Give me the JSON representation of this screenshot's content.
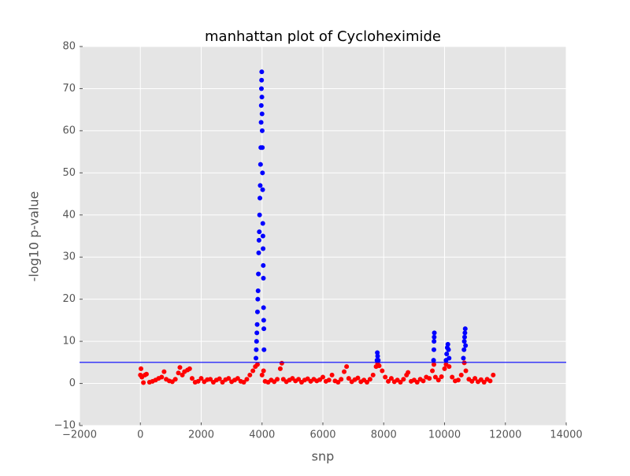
{
  "chart_data": {
    "type": "scatter",
    "title": "manhattan plot of Cycloheximide",
    "xlabel": "snp",
    "ylabel": "-log10 p-value",
    "xlim": [
      -2000,
      14000
    ],
    "ylim": [
      -10,
      80
    ],
    "xticks": [
      {
        "value": -2000,
        "label": "−2000"
      },
      0,
      2000,
      4000,
      6000,
      8000,
      10000,
      12000,
      14000
    ],
    "yticks": [
      {
        "value": -10,
        "label": "−10"
      },
      0,
      10,
      20,
      30,
      40,
      50,
      60,
      70,
      80
    ],
    "grid": true,
    "threshold": 5,
    "threshold_color": "#0000ff",
    "series": [
      {
        "color": "#ff0000",
        "x": [
          0,
          20,
          50,
          100,
          150,
          200,
          300,
          400,
          500,
          600,
          700,
          780,
          850,
          950,
          1050,
          1150,
          1250,
          1300,
          1380,
          1450,
          1550,
          1620,
          1700,
          1800,
          1900,
          2000,
          2100,
          2200,
          2300,
          2400,
          2500,
          2600,
          2700,
          2800,
          2900,
          3000,
          3100,
          3200,
          3300,
          3400,
          3500,
          3600,
          3700,
          3780,
          3850,
          4000,
          4050,
          4100,
          4200,
          4300,
          4400,
          4500,
          4600,
          4650,
          4700,
          4800,
          4900,
          5000,
          5100,
          5200,
          5300,
          5400,
          5500,
          5600,
          5700,
          5800,
          5900,
          6000,
          6100,
          6200,
          6300,
          6400,
          6500,
          6600,
          6700,
          6780,
          6850,
          6950,
          7050,
          7150,
          7250,
          7350,
          7450,
          7550,
          7650,
          7750,
          7800,
          7850,
          7950,
          8050,
          8150,
          8250,
          8350,
          8450,
          8550,
          8650,
          8750,
          8800,
          8900,
          9000,
          9100,
          9200,
          9300,
          9400,
          9500,
          9600,
          9650,
          9700,
          9800,
          9900,
          10000,
          10050,
          10150,
          10250,
          10350,
          10450,
          10550,
          10650,
          10700,
          10800,
          10900,
          11000,
          11100,
          11200,
          11300,
          11400,
          11500,
          11600
        ],
        "values": [
          2,
          3.5,
          1.5,
          0.2,
          2,
          2.2,
          0.3,
          0.5,
          0.8,
          1.2,
          1.5,
          2.8,
          1.0,
          0.6,
          0.4,
          1.0,
          2.5,
          3.8,
          2.0,
          2.8,
          3.2,
          3.5,
          1.2,
          0.3,
          0.5,
          1.2,
          0.4,
          0.9,
          1.0,
          0.3,
          0.8,
          1.1,
          0.3,
          0.9,
          1.2,
          0.4,
          0.8,
          1.2,
          0.5,
          0.3,
          1.0,
          2.0,
          3.0,
          4.0,
          4.5,
          2.0,
          3.0,
          0.5,
          0.3,
          0.8,
          0.4,
          1.0,
          3.5,
          4.8,
          1.0,
          0.4,
          0.8,
          1.2,
          0.6,
          1.0,
          0.3,
          0.8,
          1.1,
          0.5,
          1.0,
          0.6,
          0.9,
          1.5,
          0.5,
          0.8,
          2.0,
          0.6,
          0.3,
          1.0,
          2.8,
          4.0,
          1.2,
          0.4,
          0.9,
          1.3,
          0.4,
          0.8,
          0.3,
          1.0,
          2.0,
          4.0,
          4.8,
          4.2,
          3.0,
          1.5,
          0.5,
          1.2,
          0.4,
          0.8,
          0.3,
          1.0,
          2.0,
          2.6,
          0.5,
          0.8,
          0.3,
          1.0,
          0.6,
          1.5,
          1.2,
          3.0,
          4.5,
          1.5,
          0.8,
          1.6,
          3.5,
          4.5,
          4.0,
          1.5,
          0.6,
          0.8,
          2.0,
          4.9,
          3.0,
          1.0,
          0.5,
          1.2,
          0.4,
          0.9,
          0.3,
          1.0,
          0.6,
          2.0
        ]
      },
      {
        "color": "#0000ff",
        "x": [
          3800,
          3810,
          3820,
          3830,
          3840,
          3850,
          3860,
          3870,
          3880,
          3890,
          3900,
          3910,
          3920,
          3930,
          3940,
          3950,
          3960,
          3970,
          3975,
          3980,
          3985,
          3990,
          3995,
          4000,
          4005,
          4010,
          4015,
          4020,
          4025,
          4030,
          4035,
          4040,
          4045,
          4050,
          4055,
          4060,
          4065,
          7780,
          7790,
          7800,
          7820,
          9640,
          9650,
          9655,
          9660,
          9665,
          10050,
          10070,
          10090,
          10110,
          10130,
          10150,
          10620,
          10640,
          10650,
          10660,
          10670,
          10680,
          10690
        ],
        "values": [
          6,
          8,
          10,
          12,
          14,
          17,
          20,
          22,
          26,
          31,
          34,
          36,
          40,
          44,
          47,
          52,
          56,
          62,
          66,
          70,
          72,
          74,
          68,
          64,
          60,
          56,
          50,
          46,
          38,
          35,
          32,
          28,
          25,
          18,
          15,
          13,
          8,
          5.5,
          7.3,
          6.5,
          5.5,
          5.5,
          8,
          10,
          11,
          12,
          5.5,
          7,
          8.5,
          9.3,
          8,
          6,
          6,
          8,
          10,
          11,
          12,
          13,
          9
        ]
      }
    ]
  }
}
